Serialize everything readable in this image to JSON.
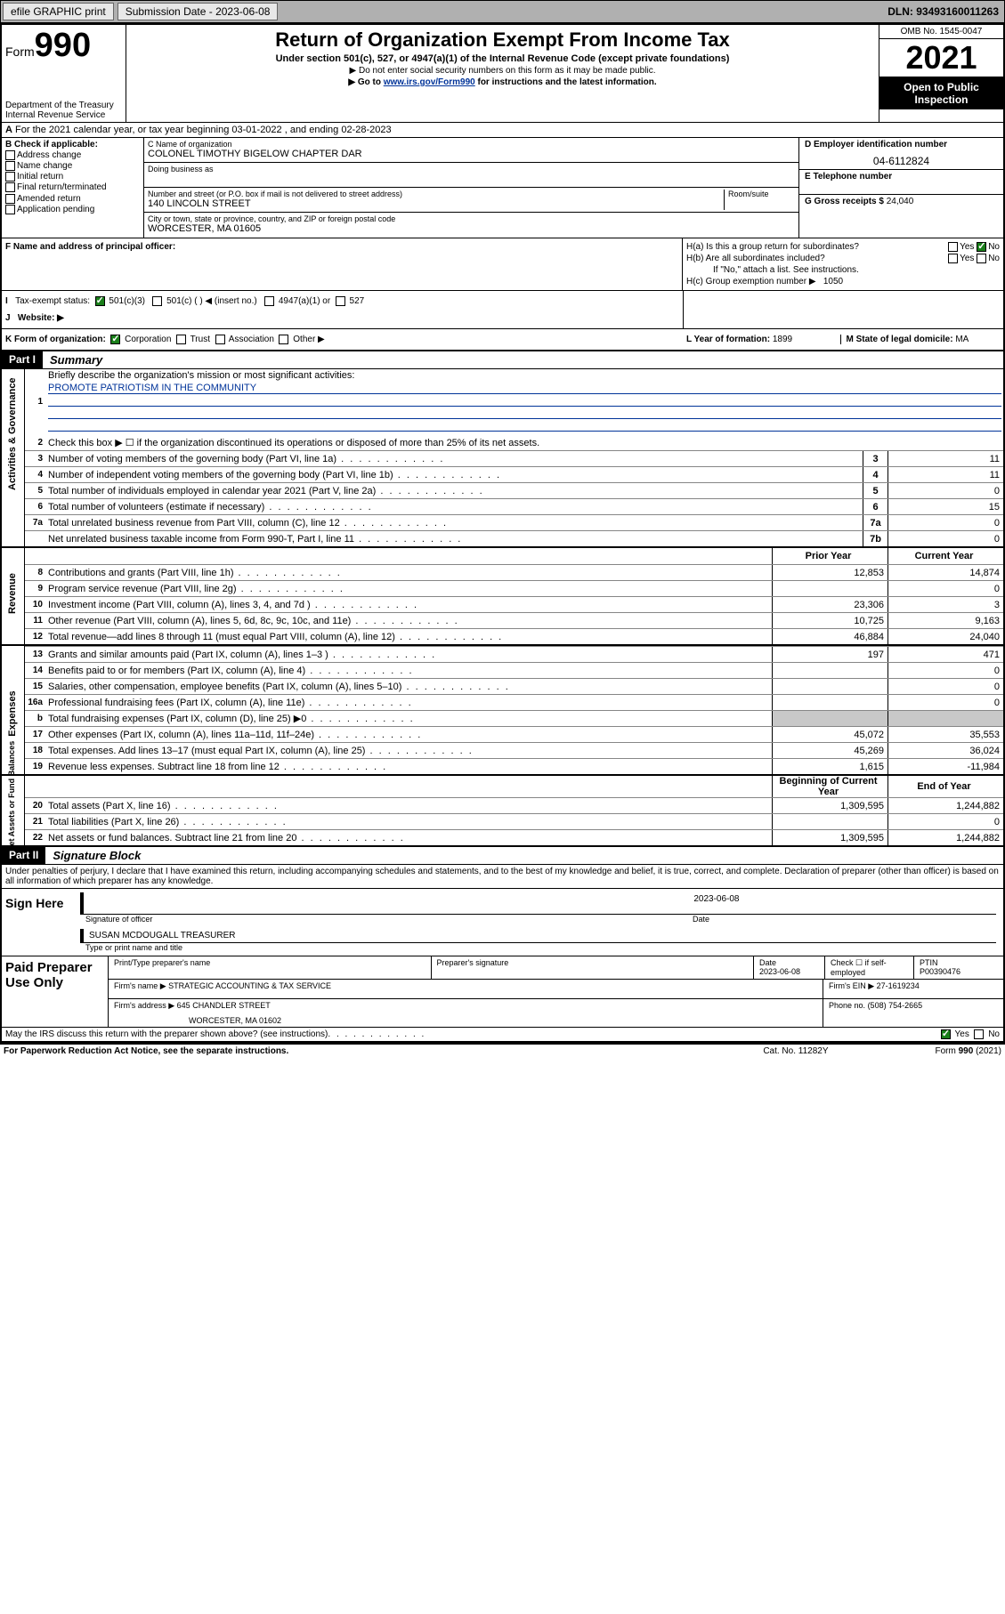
{
  "topbar": {
    "efile": "efile GRAPHIC print",
    "submission_label": "Submission Date - 2023-06-08",
    "dln": "DLN: 93493160011263"
  },
  "header": {
    "form_prefix": "Form",
    "form_no": "990",
    "dept": "Department of the Treasury",
    "irs": "Internal Revenue Service",
    "title": "Return of Organization Exempt From Income Tax",
    "subtitle": "Under section 501(c), 527, or 4947(a)(1) of the Internal Revenue Code (except private foundations)",
    "instruct1": "▶ Do not enter social security numbers on this form as it may be made public.",
    "instruct2_pre": "▶ Go to ",
    "instruct2_link": "www.irs.gov/Form990",
    "instruct2_post": " for instructions and the latest information.",
    "omb": "OMB No. 1545-0047",
    "year": "2021",
    "open": "Open to Public Inspection"
  },
  "row_a": "For the 2021 calendar year, or tax year beginning 03-01-2022   , and ending 02-28-2023",
  "section_b": {
    "label": "B Check if applicable:",
    "opts": [
      "Address change",
      "Name change",
      "Initial return",
      "Final return/terminated",
      "Amended return",
      "Application pending"
    ]
  },
  "section_c": {
    "name_lbl": "C Name of organization",
    "name_val": "COLONEL TIMOTHY BIGELOW CHAPTER DAR",
    "dba_lbl": "Doing business as",
    "dba_val": "",
    "street_lbl": "Number and street (or P.O. box if mail is not delivered to street address)",
    "room_lbl": "Room/suite",
    "street_val": "140 LINCOLN STREET",
    "city_lbl": "City or town, state or province, country, and ZIP or foreign postal code",
    "city_val": "WORCESTER, MA  01605"
  },
  "section_d": {
    "lbl": "D Employer identification number",
    "val": "04-6112824"
  },
  "section_e": {
    "lbl": "E Telephone number",
    "val": ""
  },
  "section_g": {
    "lbl": "G Gross receipts $",
    "val": "24,040"
  },
  "section_f": {
    "lbl": "F  Name and address of principal officer:",
    "val": ""
  },
  "section_h": {
    "ha": "H(a)  Is this a group return for subordinates?",
    "ha_yes": "Yes",
    "ha_no": "No",
    "hb": "H(b)  Are all subordinates included?",
    "hb_note": "If \"No,\" attach a list. See instructions.",
    "hc": "H(c)  Group exemption number ▶",
    "hc_val": "1050"
  },
  "row_i": {
    "lbl": "Tax-exempt status:",
    "opts": [
      "501(c)(3)",
      "501(c) (  ) ◀ (insert no.)",
      "4947(a)(1) or",
      "527"
    ]
  },
  "row_j": {
    "lbl": "Website: ▶",
    "val": ""
  },
  "row_k": {
    "lbl": "K Form of organization:",
    "opts": [
      "Corporation",
      "Trust",
      "Association",
      "Other ▶"
    ]
  },
  "row_l": {
    "lbl": "L Year of formation:",
    "val": "1899"
  },
  "row_m": {
    "lbl": "M State of legal domicile:",
    "val": "MA"
  },
  "part1": {
    "hdr": "Part I",
    "title": "Summary",
    "line1_lbl": "Briefly describe the organization's mission or most significant activities:",
    "line1_val": "PROMOTE PATRIOTISM IN THE COMMUNITY",
    "line2": "Check this box ▶ ☐  if the organization discontinued its operations or disposed of more than 25% of its net assets.",
    "groups": {
      "gov": "Activities & Governance",
      "rev": "Revenue",
      "exp": "Expenses",
      "net": "Net Assets or Fund Balances"
    },
    "col_prior": "Prior Year",
    "col_curr": "Current Year",
    "col_begin": "Beginning of Current Year",
    "col_end": "End of Year",
    "rows_single": [
      {
        "n": "3",
        "d": "Number of voting members of the governing body (Part VI, line 1a)",
        "box": "3",
        "v": "11"
      },
      {
        "n": "4",
        "d": "Number of independent voting members of the governing body (Part VI, line 1b)",
        "box": "4",
        "v": "11"
      },
      {
        "n": "5",
        "d": "Total number of individuals employed in calendar year 2021 (Part V, line 2a)",
        "box": "5",
        "v": "0"
      },
      {
        "n": "6",
        "d": "Total number of volunteers (estimate if necessary)",
        "box": "6",
        "v": "15"
      },
      {
        "n": "7a",
        "d": "Total unrelated business revenue from Part VIII, column (C), line 12",
        "box": "7a",
        "v": "0"
      },
      {
        "n": "",
        "d": "Net unrelated business taxable income from Form 990-T, Part I, line 11",
        "box": "7b",
        "v": "0"
      }
    ],
    "rows_rev": [
      {
        "n": "8",
        "d": "Contributions and grants (Part VIII, line 1h)",
        "p": "12,853",
        "c": "14,874"
      },
      {
        "n": "9",
        "d": "Program service revenue (Part VIII, line 2g)",
        "p": "",
        "c": "0"
      },
      {
        "n": "10",
        "d": "Investment income (Part VIII, column (A), lines 3, 4, and 7d )",
        "p": "23,306",
        "c": "3"
      },
      {
        "n": "11",
        "d": "Other revenue (Part VIII, column (A), lines 5, 6d, 8c, 9c, 10c, and 11e)",
        "p": "10,725",
        "c": "9,163"
      },
      {
        "n": "12",
        "d": "Total revenue—add lines 8 through 11 (must equal Part VIII, column (A), line 12)",
        "p": "46,884",
        "c": "24,040"
      }
    ],
    "rows_exp": [
      {
        "n": "13",
        "d": "Grants and similar amounts paid (Part IX, column (A), lines 1–3 )",
        "p": "197",
        "c": "471"
      },
      {
        "n": "14",
        "d": "Benefits paid to or for members (Part IX, column (A), line 4)",
        "p": "",
        "c": "0"
      },
      {
        "n": "15",
        "d": "Salaries, other compensation, employee benefits (Part IX, column (A), lines 5–10)",
        "p": "",
        "c": "0"
      },
      {
        "n": "16a",
        "d": "Professional fundraising fees (Part IX, column (A), line 11e)",
        "p": "",
        "c": "0"
      },
      {
        "n": "b",
        "d": "Total fundraising expenses (Part IX, column (D), line 25) ▶0",
        "p": "grey",
        "c": "grey"
      },
      {
        "n": "17",
        "d": "Other expenses (Part IX, column (A), lines 11a–11d, 11f–24e)",
        "p": "45,072",
        "c": "35,553"
      },
      {
        "n": "18",
        "d": "Total expenses. Add lines 13–17 (must equal Part IX, column (A), line 25)",
        "p": "45,269",
        "c": "36,024"
      },
      {
        "n": "19",
        "d": "Revenue less expenses. Subtract line 18 from line 12",
        "p": "1,615",
        "c": "-11,984"
      }
    ],
    "rows_net": [
      {
        "n": "20",
        "d": "Total assets (Part X, line 16)",
        "p": "1,309,595",
        "c": "1,244,882"
      },
      {
        "n": "21",
        "d": "Total liabilities (Part X, line 26)",
        "p": "",
        "c": "0"
      },
      {
        "n": "22",
        "d": "Net assets or fund balances. Subtract line 21 from line 20",
        "p": "1,309,595",
        "c": "1,244,882"
      }
    ]
  },
  "part2": {
    "hdr": "Part II",
    "title": "Signature Block",
    "perjury": "Under penalties of perjury, I declare that I have examined this return, including accompanying schedules and statements, and to the best of my knowledge and belief, it is true, correct, and complete. Declaration of preparer (other than officer) is based on all information of which preparer has any knowledge.",
    "sign_here": "Sign Here",
    "sig_officer": "Signature of officer",
    "sig_date": "Date",
    "sig_date_val": "2023-06-08",
    "sig_name": "SUSAN MCDOUGALL TREASURER",
    "sig_name_lbl": "Type or print name and title",
    "paid": "Paid Preparer Use Only",
    "prep_name_lbl": "Print/Type preparer's name",
    "prep_sig_lbl": "Preparer's signature",
    "prep_date_lbl": "Date",
    "prep_date_val": "2023-06-08",
    "prep_check": "Check ☐ if self-employed",
    "ptin_lbl": "PTIN",
    "ptin_val": "P00390476",
    "firm_name_lbl": "Firm's name    ▶",
    "firm_name_val": "STRATEGIC ACCOUNTING & TAX SERVICE",
    "firm_ein_lbl": "Firm's EIN ▶",
    "firm_ein_val": "27-1619234",
    "firm_addr_lbl": "Firm's address ▶",
    "firm_addr_val1": "645 CHANDLER STREET",
    "firm_addr_val2": "WORCESTER, MA  01602",
    "phone_lbl": "Phone no.",
    "phone_val": "(508) 754-2665",
    "discuss": "May the IRS discuss this return with the preparer shown above? (see instructions)",
    "yes": "Yes",
    "no": "No"
  },
  "footer": {
    "pra": "For Paperwork Reduction Act Notice, see the separate instructions.",
    "cat": "Cat. No. 11282Y",
    "form": "Form 990 (2021)"
  }
}
